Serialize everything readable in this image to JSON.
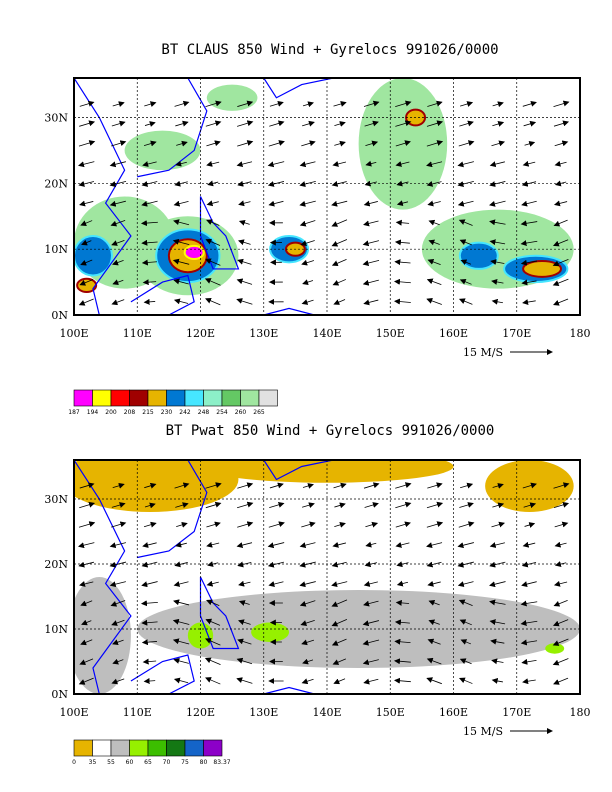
{
  "chart_data": [
    {
      "type": "heatmap",
      "title": "BT CLAUS 850 Wind + Gyrelocs 991026/0000",
      "x_ticks": [
        "100E",
        "110E",
        "120E",
        "130E",
        "140E",
        "150E",
        "160E",
        "170E",
        "180"
      ],
      "y_ticks": [
        "0N",
        "10N",
        "20N",
        "30N"
      ],
      "xlim": [
        100,
        180
      ],
      "ylim": [
        0,
        36
      ],
      "vector_scale_label": "15 M/S",
      "colorbar": {
        "labels": [
          "187",
          "194",
          "200",
          "208",
          "215",
          "230",
          "242",
          "248",
          "254",
          "260",
          "265"
        ],
        "colors": [
          "#ff00ff",
          "#ffff00",
          "#ff0000",
          "#a00000",
          "#e6b400",
          "#0078d2",
          "#46e6ff",
          "#8cf0c8",
          "#64c864",
          "#a0e6a0",
          "#e1e1e1"
        ]
      },
      "features": [
        {
          "level": "light",
          "lon": 108,
          "lat": 11,
          "rx": 8,
          "ry": 7
        },
        {
          "level": "light",
          "lon": 118,
          "lat": 9,
          "rx": 8,
          "ry": 6
        },
        {
          "level": "light",
          "lon": 152,
          "lat": 26,
          "rx": 7,
          "ry": 10
        },
        {
          "level": "light",
          "lon": 167,
          "lat": 10,
          "rx": 12,
          "ry": 6
        },
        {
          "level": "light",
          "lon": 114,
          "lat": 25,
          "rx": 6,
          "ry": 3
        },
        {
          "level": "light",
          "lon": 125,
          "lat": 33,
          "rx": 4,
          "ry": 2
        },
        {
          "level": "mid",
          "lon": 118,
          "lat": 9,
          "rx": 5,
          "ry": 4
        },
        {
          "level": "mid",
          "lon": 134,
          "lat": 10,
          "rx": 3,
          "ry": 2
        },
        {
          "level": "mid",
          "lon": 173,
          "lat": 7,
          "rx": 5,
          "ry": 2
        },
        {
          "level": "mid",
          "lon": 164,
          "lat": 9,
          "rx": 3,
          "ry": 2
        },
        {
          "level": "mid",
          "lon": 103,
          "lat": 9,
          "rx": 3,
          "ry": 3
        },
        {
          "level": "high",
          "lon": 118,
          "lat": 9,
          "rx": 3,
          "ry": 2.5
        },
        {
          "level": "high",
          "lon": 135,
          "lat": 10,
          "rx": 1.5,
          "ry": 1
        },
        {
          "level": "high",
          "lon": 174,
          "lat": 7,
          "rx": 3,
          "ry": 1.2
        },
        {
          "level": "high",
          "lon": 154,
          "lat": 30,
          "rx": 1.5,
          "ry": 1.2
        },
        {
          "level": "high",
          "lon": 102,
          "lat": 4.5,
          "rx": 1.5,
          "ry": 1
        },
        {
          "level": "core",
          "lon": 119,
          "lat": 9.5,
          "rx": 1.5,
          "ry": 1
        }
      ]
    },
    {
      "type": "heatmap",
      "title": "BT Pwat 850 Wind + Gyrelocs 991026/0000",
      "x_ticks": [
        "100E",
        "110E",
        "120E",
        "130E",
        "140E",
        "150E",
        "160E",
        "170E",
        "180"
      ],
      "y_ticks": [
        "0N",
        "10N",
        "20N",
        "30N"
      ],
      "xlim": [
        100,
        180
      ],
      "ylim": [
        0,
        36
      ],
      "vector_scale_label": "15 M/S",
      "colorbar": {
        "labels": [
          "0",
          "35",
          "55",
          "60",
          "65",
          "70",
          "75",
          "80",
          "83.37"
        ],
        "colors": [
          "#e6b400",
          "#ffffff",
          "#bebebe",
          "#96f000",
          "#3cbe00",
          "#147814",
          "#1464c8",
          "#8c00c8"
        ]
      },
      "features": [
        {
          "level": "dry",
          "lon": 112,
          "lat": 33,
          "rx": 14,
          "ry": 5
        },
        {
          "level": "dry",
          "lon": 140,
          "lat": 35,
          "rx": 20,
          "ry": 2.5
        },
        {
          "level": "dry",
          "lon": 172,
          "lat": 32,
          "rx": 7,
          "ry": 4
        },
        {
          "level": "moist",
          "lon": 145,
          "lat": 10,
          "rx": 35,
          "ry": 6
        },
        {
          "level": "moist",
          "lon": 104,
          "lat": 9,
          "rx": 5,
          "ry": 9
        },
        {
          "level": "wet",
          "lon": 120,
          "lat": 9,
          "rx": 2,
          "ry": 2
        },
        {
          "level": "wet",
          "lon": 131,
          "lat": 9.5,
          "rx": 3,
          "ry": 1.5
        },
        {
          "level": "wet",
          "lon": 176,
          "lat": 7,
          "rx": 1.5,
          "ry": 0.8
        }
      ]
    }
  ]
}
